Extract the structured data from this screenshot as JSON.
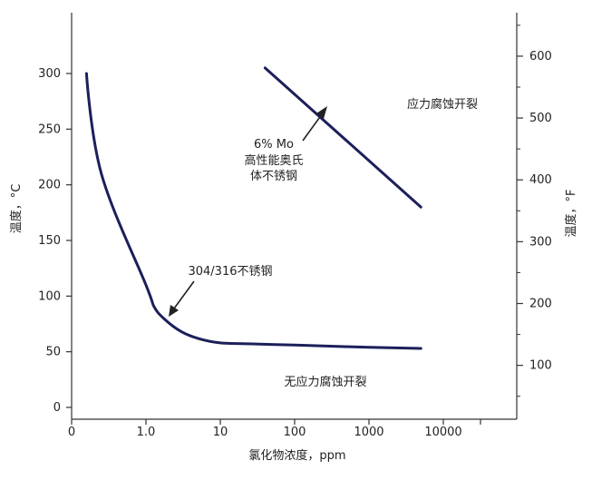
{
  "chart_data": {
    "type": "line",
    "xlabel": "氯化物浓度，ppm",
    "ylabel": "温度，°C",
    "ylabel_right": "温度，°F",
    "x_ticks": [
      "0",
      "1.0",
      "10",
      "100",
      "1000",
      "10000"
    ],
    "y_ticks_left": [
      "0",
      "50",
      "100",
      "150",
      "200",
      "250",
      "300"
    ],
    "y_ticks_right": [
      "100",
      "200",
      "300",
      "400",
      "500",
      "600"
    ],
    "ylim_c": [
      0,
      340
    ],
    "grid": false,
    "series": [
      {
        "name": "304/316不锈钢",
        "x": [
          0.2,
          0.4,
          1.0,
          1.3,
          1.8,
          3,
          5,
          10,
          30,
          100,
          300,
          1000,
          5000
        ],
        "y": [
          300,
          210,
          110,
          90,
          79,
          68,
          62,
          58,
          57,
          56,
          55,
          54,
          53
        ]
      },
      {
        "name": "6% Mo 高性能奥氏体不锈钢",
        "x": [
          40,
          5000
        ],
        "y": [
          305,
          180
        ]
      }
    ],
    "annotations": {
      "mo_line1": "6% Mo",
      "mo_line2": "高性能奥氏",
      "mo_line3": "体不锈钢",
      "ss_label": "304/316不锈钢",
      "scc_region": "应力腐蚀开裂",
      "no_scc_region": "无应力腐蚀开裂"
    },
    "colors": {
      "curve": "#1c1f5a",
      "axis": "#333333"
    }
  }
}
